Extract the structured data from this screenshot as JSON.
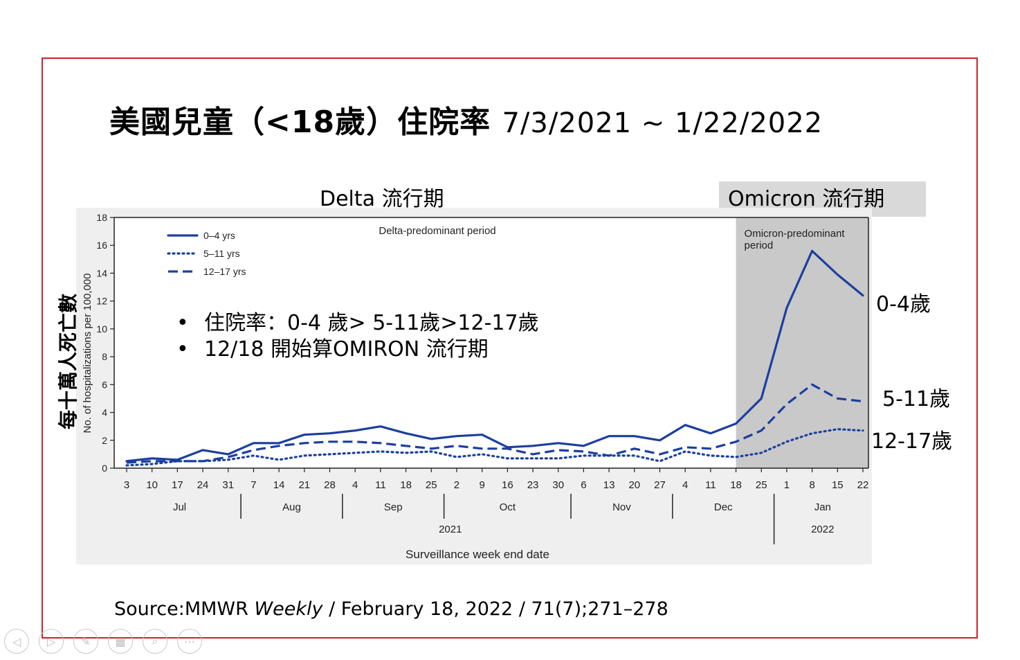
{
  "slide": {
    "title_main": "美國兒童（<18歲）住院率",
    "title_dates": "7/3/2021 ~ 1/22/2022",
    "delta_header": "Delta 流行期",
    "omicron_header": "Omicron 流行期",
    "ylabel_zh": "每十萬人死亡數",
    "bullets": [
      "住院率：0-4 歲> 5-11歲>12-17歲",
      "12/18 開始算OMIRON 流行期"
    ],
    "bullet_glyph": "•",
    "series_labels": [
      "0-4歲",
      "5-11歲",
      "12-17歲"
    ],
    "source_prefix": "Source:MMWR ",
    "source_italic": "Weekly",
    "source_suffix": " / February 18, 2022 / 71(7);271–278",
    "accent_color": "#1b3fa0",
    "frame_color": "#d0202a"
  },
  "nav": {
    "buttons": [
      {
        "name": "previous-slide-icon",
        "glyph": "◁"
      },
      {
        "name": "next-slide-icon",
        "glyph": "▷"
      },
      {
        "name": "pen-icon",
        "glyph": "✎"
      },
      {
        "name": "slides-grid-icon",
        "glyph": "▦"
      },
      {
        "name": "zoom-icon",
        "glyph": "⌕"
      },
      {
        "name": "more-icon",
        "glyph": "⋯"
      }
    ]
  },
  "chart_data": {
    "type": "line",
    "ylabel": "No. of hospitalizations per 100,000",
    "xlabel": "Surveillance week end date",
    "ylim": [
      0,
      18
    ],
    "yticks": [
      0,
      2,
      4,
      6,
      8,
      10,
      12,
      14,
      16,
      18
    ],
    "x": [
      "3",
      "10",
      "17",
      "24",
      "31",
      "7",
      "14",
      "21",
      "28",
      "4",
      "11",
      "18",
      "25",
      "2",
      "9",
      "16",
      "23",
      "30",
      "6",
      "13",
      "20",
      "27",
      "4",
      "11",
      "18",
      "25",
      "1",
      "8",
      "15",
      "22"
    ],
    "months": [
      "Jul",
      "Aug",
      "Sep",
      "Oct",
      "Nov",
      "Dec",
      "Jan"
    ],
    "years": [
      "2021",
      "2022"
    ],
    "annotations": [
      "Delta-predominant period",
      "Omicron-predominant period"
    ],
    "shaded_start_label": "18",
    "series": [
      {
        "name": "0–4 yrs",
        "style": "solid",
        "color": "#1b3fa0",
        "values": [
          0.5,
          0.7,
          0.6,
          1.3,
          1.0,
          1.8,
          1.8,
          2.4,
          2.5,
          2.7,
          3.0,
          2.5,
          2.1,
          2.3,
          2.4,
          1.5,
          1.6,
          1.8,
          1.6,
          2.3,
          2.3,
          2.0,
          3.1,
          2.5,
          3.2,
          5.0,
          11.5,
          15.6,
          13.9,
          12.4
        ]
      },
      {
        "name": "5–11 yrs",
        "style": "dotted",
        "color": "#1b3fa0",
        "values": [
          0.2,
          0.3,
          0.5,
          0.5,
          0.6,
          0.9,
          0.6,
          0.9,
          1.0,
          1.1,
          1.2,
          1.1,
          1.2,
          0.8,
          1.0,
          0.7,
          0.7,
          0.7,
          0.9,
          0.9,
          0.9,
          0.5,
          1.2,
          0.9,
          0.8,
          1.1,
          1.9,
          2.5,
          2.8,
          2.7
        ]
      },
      {
        "name": "12–17 yrs",
        "style": "dashed",
        "color": "#1b3fa0",
        "values": [
          0.4,
          0.5,
          0.5,
          0.5,
          0.8,
          1.3,
          1.6,
          1.8,
          1.9,
          1.9,
          1.8,
          1.6,
          1.4,
          1.6,
          1.4,
          1.4,
          1.0,
          1.3,
          1.2,
          0.9,
          1.4,
          1.0,
          1.5,
          1.4,
          1.9,
          2.7,
          4.6,
          6.0,
          5.0,
          4.8
        ]
      }
    ]
  }
}
